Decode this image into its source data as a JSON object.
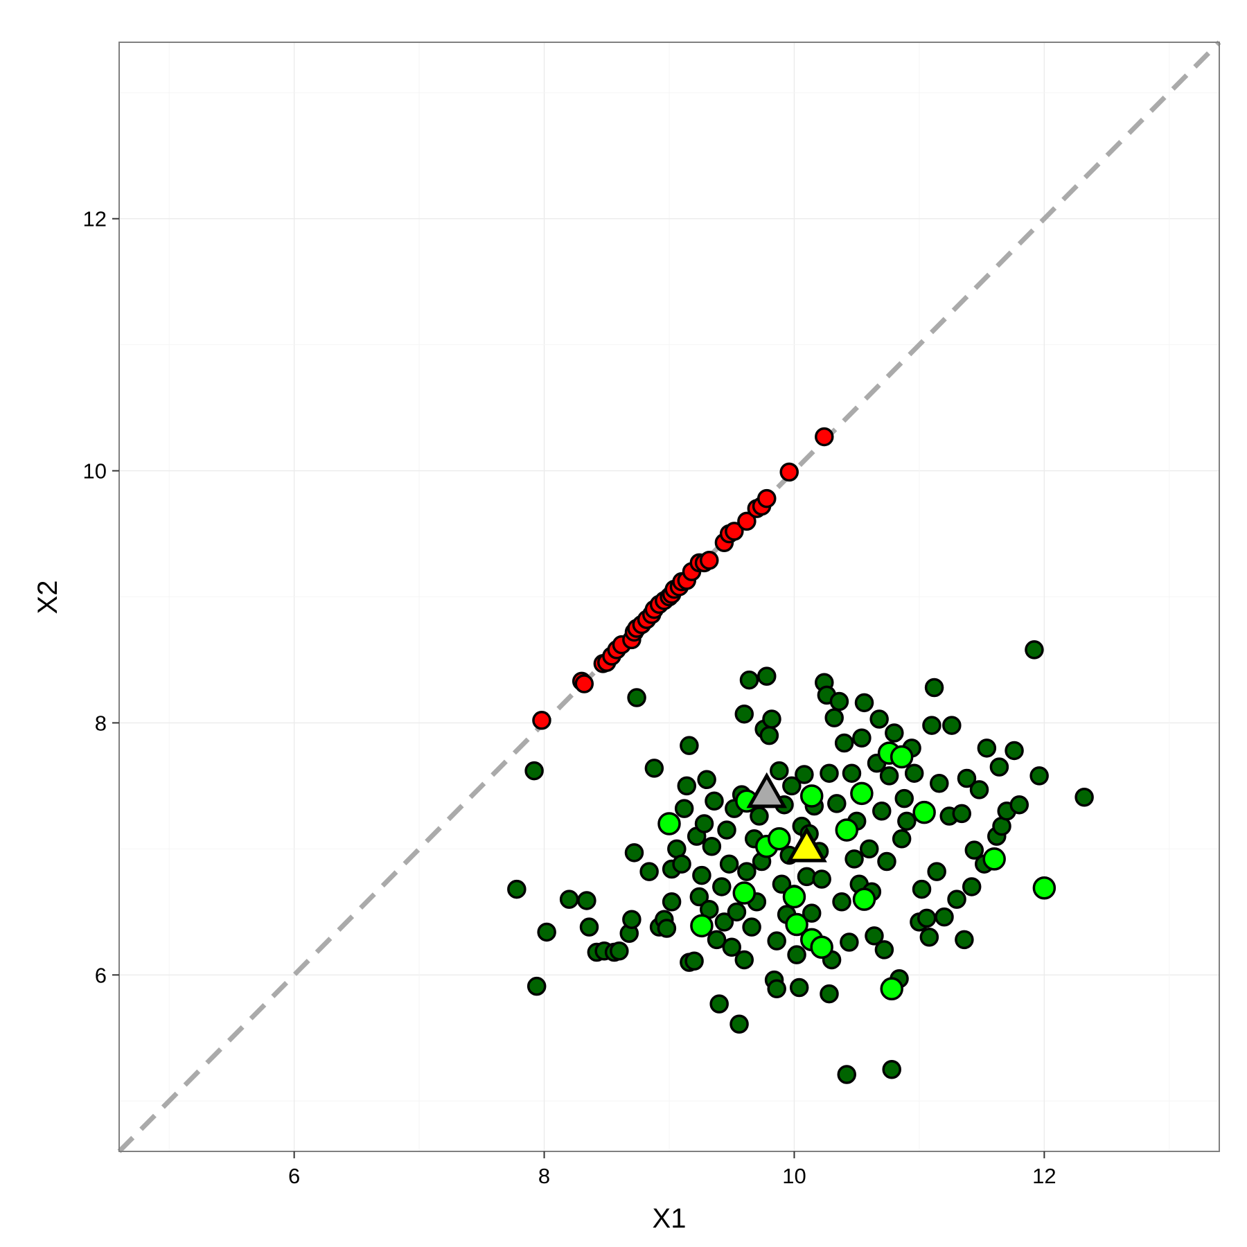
{
  "chart_data": {
    "type": "scatter",
    "title": "",
    "xlabel": "X1",
    "ylabel": "X2",
    "xlim": [
      4.6,
      13.4
    ],
    "ylim": [
      4.6,
      13.4
    ],
    "xticks": [
      6,
      8,
      10,
      12
    ],
    "yticks": [
      6,
      8,
      10,
      12
    ],
    "xtick_labels": [
      "6",
      "8",
      "10",
      "12"
    ],
    "ytick_labels": [
      "6",
      "8",
      "10",
      "12"
    ],
    "grid": true,
    "legend": "none",
    "reference_line": {
      "slope": 1,
      "intercept": 0,
      "style": "dashed",
      "color": "#aaaaaa"
    },
    "colors": {
      "on_diagonal": "#ff0000",
      "cluster": "#006400",
      "highlighted": "#00ff00",
      "marker_gray": "#aaaaaa",
      "marker_yellow": "#ffff00"
    },
    "series": [
      {
        "color": "#ff0000",
        "points": [
          [
            7.98,
            8.02
          ],
          [
            8.3,
            8.33
          ],
          [
            8.32,
            8.31
          ],
          [
            8.47,
            8.47
          ],
          [
            8.5,
            8.48
          ],
          [
            8.54,
            8.53
          ],
          [
            8.58,
            8.58
          ],
          [
            8.62,
            8.62
          ],
          [
            8.7,
            8.66
          ],
          [
            8.72,
            8.72
          ],
          [
            8.74,
            8.75
          ],
          [
            8.78,
            8.78
          ],
          [
            8.82,
            8.82
          ],
          [
            8.86,
            8.86
          ],
          [
            8.88,
            8.9
          ],
          [
            8.92,
            8.94
          ],
          [
            8.96,
            8.97
          ],
          [
            9.0,
            9.0
          ],
          [
            9.02,
            9.02
          ],
          [
            9.04,
            9.06
          ],
          [
            9.08,
            9.08
          ],
          [
            9.1,
            9.12
          ],
          [
            9.14,
            9.13
          ],
          [
            9.18,
            9.2
          ],
          [
            9.24,
            9.27
          ],
          [
            9.28,
            9.27
          ],
          [
            9.32,
            9.29
          ],
          [
            9.44,
            9.43
          ],
          [
            9.48,
            9.5
          ],
          [
            9.52,
            9.52
          ],
          [
            9.62,
            9.6
          ],
          [
            9.7,
            9.7
          ],
          [
            9.74,
            9.72
          ],
          [
            9.78,
            9.78
          ],
          [
            9.96,
            9.99
          ],
          [
            10.24,
            10.27
          ]
        ]
      },
      {
        "color": "#006400",
        "points": [
          [
            7.78,
            6.68
          ],
          [
            7.92,
            7.62
          ],
          [
            7.94,
            5.91
          ],
          [
            8.02,
            6.34
          ],
          [
            8.2,
            6.6
          ],
          [
            8.34,
            6.59
          ],
          [
            8.36,
            6.38
          ],
          [
            8.42,
            6.18
          ],
          [
            8.48,
            6.19
          ],
          [
            8.56,
            6.18
          ],
          [
            8.6,
            6.19
          ],
          [
            8.68,
            6.33
          ],
          [
            8.7,
            6.44
          ],
          [
            8.72,
            6.97
          ],
          [
            8.74,
            8.2
          ],
          [
            8.84,
            6.82
          ],
          [
            8.88,
            7.64
          ],
          [
            8.92,
            6.38
          ],
          [
            8.96,
            6.44
          ],
          [
            8.98,
            6.37
          ],
          [
            9.02,
            6.58
          ],
          [
            9.02,
            6.84
          ],
          [
            9.06,
            7.0
          ],
          [
            9.1,
            6.88
          ],
          [
            9.12,
            7.32
          ],
          [
            9.14,
            7.5
          ],
          [
            9.16,
            7.82
          ],
          [
            9.16,
            6.1
          ],
          [
            9.2,
            6.11
          ],
          [
            9.22,
            7.1
          ],
          [
            9.24,
            6.62
          ],
          [
            9.26,
            6.79
          ],
          [
            9.28,
            7.2
          ],
          [
            9.3,
            7.55
          ],
          [
            9.32,
            6.52
          ],
          [
            9.34,
            7.02
          ],
          [
            9.36,
            7.38
          ],
          [
            9.38,
            6.28
          ],
          [
            9.4,
            5.77
          ],
          [
            9.42,
            6.7
          ],
          [
            9.44,
            6.42
          ],
          [
            9.46,
            7.15
          ],
          [
            9.48,
            6.88
          ],
          [
            9.5,
            6.22
          ],
          [
            9.52,
            7.32
          ],
          [
            9.54,
            6.5
          ],
          [
            9.56,
            5.61
          ],
          [
            9.58,
            7.43
          ],
          [
            9.6,
            8.07
          ],
          [
            9.6,
            6.12
          ],
          [
            9.62,
            6.82
          ],
          [
            9.64,
            8.34
          ],
          [
            9.66,
            6.38
          ],
          [
            9.68,
            7.08
          ],
          [
            9.7,
            6.58
          ],
          [
            9.72,
            7.26
          ],
          [
            9.74,
            6.9
          ],
          [
            9.76,
            7.95
          ],
          [
            9.78,
            8.37
          ],
          [
            9.8,
            7.9
          ],
          [
            9.82,
            8.03
          ],
          [
            9.84,
            5.96
          ],
          [
            9.86,
            5.89
          ],
          [
            9.86,
            6.27
          ],
          [
            9.88,
            7.62
          ],
          [
            9.9,
            6.72
          ],
          [
            9.92,
            7.35
          ],
          [
            9.94,
            6.48
          ],
          [
            9.96,
            6.95
          ],
          [
            9.98,
            7.5
          ],
          [
            10.0,
            6.64
          ],
          [
            10.02,
            6.16
          ],
          [
            10.04,
            5.9
          ],
          [
            10.06,
            7.18
          ],
          [
            10.08,
            7.59
          ],
          [
            10.1,
            6.78
          ],
          [
            10.12,
            7.12
          ],
          [
            10.14,
            6.49
          ],
          [
            10.16,
            7.34
          ],
          [
            10.2,
            6.98
          ],
          [
            10.22,
            6.76
          ],
          [
            10.24,
            8.32
          ],
          [
            10.26,
            8.22
          ],
          [
            10.28,
            5.85
          ],
          [
            10.28,
            7.6
          ],
          [
            10.3,
            6.12
          ],
          [
            10.32,
            8.04
          ],
          [
            10.34,
            7.36
          ],
          [
            10.36,
            8.17
          ],
          [
            10.38,
            6.58
          ],
          [
            10.4,
            7.84
          ],
          [
            10.42,
            5.21
          ],
          [
            10.44,
            6.26
          ],
          [
            10.46,
            7.6
          ],
          [
            10.48,
            6.92
          ],
          [
            10.5,
            7.22
          ],
          [
            10.52,
            6.72
          ],
          [
            10.54,
            7.88
          ],
          [
            10.56,
            8.16
          ],
          [
            10.6,
            7.0
          ],
          [
            10.62,
            6.66
          ],
          [
            10.64,
            6.31
          ],
          [
            10.66,
            7.68
          ],
          [
            10.68,
            8.03
          ],
          [
            10.7,
            7.3
          ],
          [
            10.72,
            6.2
          ],
          [
            10.74,
            6.9
          ],
          [
            10.76,
            7.58
          ],
          [
            10.78,
            5.25
          ],
          [
            10.8,
            7.92
          ],
          [
            10.84,
            5.97
          ],
          [
            10.86,
            7.08
          ],
          [
            10.88,
            7.4
          ],
          [
            10.9,
            7.22
          ],
          [
            10.94,
            7.8
          ],
          [
            10.96,
            7.6
          ],
          [
            11.0,
            6.42
          ],
          [
            11.02,
            6.68
          ],
          [
            11.06,
            6.45
          ],
          [
            11.08,
            6.3
          ],
          [
            11.1,
            7.98
          ],
          [
            11.12,
            8.28
          ],
          [
            11.14,
            6.82
          ],
          [
            11.16,
            7.52
          ],
          [
            11.2,
            6.46
          ],
          [
            11.24,
            7.26
          ],
          [
            11.26,
            7.98
          ],
          [
            11.3,
            6.6
          ],
          [
            11.34,
            7.28
          ],
          [
            11.36,
            6.28
          ],
          [
            11.38,
            7.56
          ],
          [
            11.42,
            6.7
          ],
          [
            11.44,
            6.99
          ],
          [
            11.48,
            7.47
          ],
          [
            11.52,
            6.88
          ],
          [
            11.54,
            7.8
          ],
          [
            11.62,
            7.1
          ],
          [
            11.64,
            7.65
          ],
          [
            11.66,
            7.18
          ],
          [
            11.7,
            7.3
          ],
          [
            11.76,
            7.78
          ],
          [
            11.8,
            7.35
          ],
          [
            11.92,
            8.58
          ],
          [
            11.96,
            7.58
          ],
          [
            12.32,
            7.41
          ]
        ]
      },
      {
        "color": "#00ff00",
        "points": [
          [
            9.0,
            7.2
          ],
          [
            9.26,
            6.39
          ],
          [
            9.6,
            6.65
          ],
          [
            9.62,
            7.38
          ],
          [
            9.78,
            7.02
          ],
          [
            9.88,
            7.08
          ],
          [
            10.0,
            6.62
          ],
          [
            10.02,
            6.4
          ],
          [
            10.14,
            7.42
          ],
          [
            10.14,
            6.28
          ],
          [
            10.22,
            6.22
          ],
          [
            10.42,
            7.15
          ],
          [
            10.54,
            7.44
          ],
          [
            10.56,
            6.6
          ],
          [
            10.76,
            7.76
          ],
          [
            10.78,
            5.89
          ],
          [
            10.86,
            7.73
          ],
          [
            11.04,
            7.29
          ],
          [
            11.6,
            6.92
          ],
          [
            12.0,
            6.69
          ]
        ]
      }
    ],
    "markers": [
      {
        "shape": "triangle",
        "color": "#aaaaaa",
        "x": 9.78,
        "y": 7.43
      },
      {
        "shape": "triangle",
        "color": "#ffff00",
        "x": 10.1,
        "y": 7.0
      }
    ]
  }
}
